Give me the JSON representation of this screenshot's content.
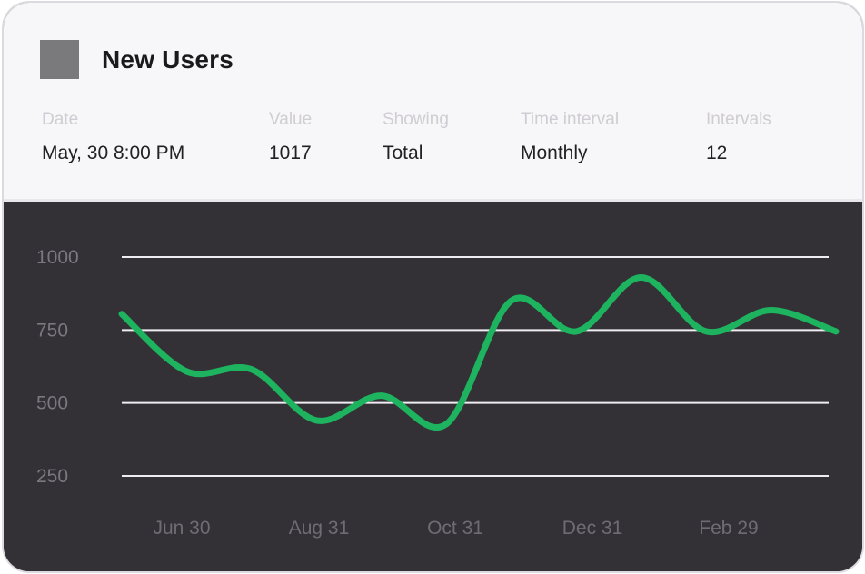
{
  "widget": {
    "title": "New Users",
    "icon": "gray-square-icon"
  },
  "info_bar": {
    "fields": [
      {
        "label": "Date",
        "value": "May, 30 8:00 PM"
      },
      {
        "label": "Value",
        "value": "1017"
      },
      {
        "label": "Showing",
        "value": "Total"
      },
      {
        "label": "Time interval",
        "value": "Monthly"
      },
      {
        "label": "Intervals",
        "value": "12"
      }
    ]
  },
  "chart_data": {
    "type": "line",
    "title": "New Users",
    "series": [
      {
        "name": "New Users",
        "values": [
          805,
          608,
          615,
          440,
          525,
          428,
          850,
          745,
          930,
          745,
          818,
          745
        ]
      }
    ],
    "points_count": 12,
    "x_tick_labels": [
      "Jun 30",
      "Aug 31",
      "Oct 31",
      "Dec 31",
      "Feb 29"
    ],
    "y_tick_labels": [
      "1000",
      "750",
      "500",
      "250"
    ],
    "y_tick_values": [
      1000,
      750,
      500,
      250
    ],
    "ylim": [
      250,
      1000
    ],
    "grid": "horizontal",
    "legend_position": "none",
    "smoothing": "cubic"
  },
  "colors": {
    "line": "#1db35f",
    "chart_background": "#333036",
    "gridline": "#efedf1",
    "y_tick_text": "#7b7980",
    "x_tick_text": "#6f6d74",
    "header_background": "#f7f6f8",
    "field_label": "#cfcdd3",
    "field_value": "#222125",
    "icon": "#7a797c"
  }
}
